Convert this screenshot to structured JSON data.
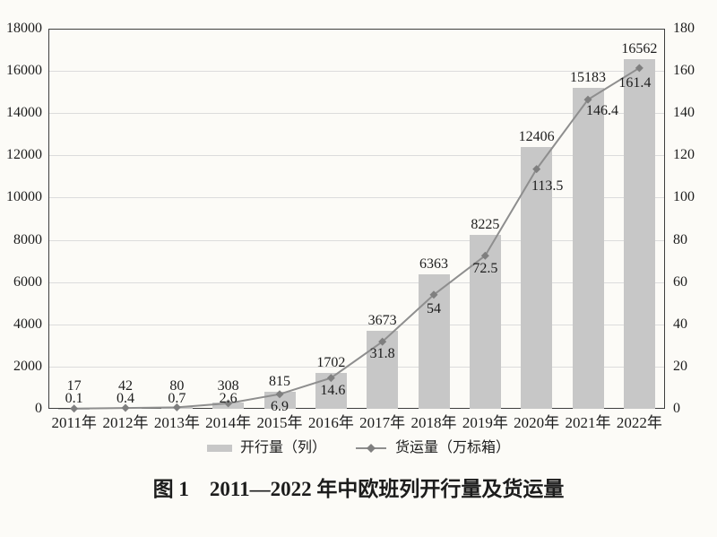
{
  "figure": {
    "caption": "图 1　2011—2022 年中欧班列开行量及货运量"
  },
  "legend": {
    "bar_label": "开行量（列）",
    "line_label": "货运量（万标箱）"
  },
  "chart_data": {
    "type": "bar+line",
    "title": "",
    "categories": [
      "2011年",
      "2012年",
      "2013年",
      "2014年",
      "2015年",
      "2016年",
      "2017年",
      "2018年",
      "2019年",
      "2020年",
      "2021年",
      "2022年"
    ],
    "series": [
      {
        "name": "开行量（列）",
        "chart": "bar",
        "axis": "left",
        "values": [
          17,
          42,
          80,
          308,
          815,
          1702,
          3673,
          6363,
          8225,
          12406,
          15183,
          16562
        ],
        "labels": [
          "17",
          "42",
          "80",
          "308",
          "815",
          "1702",
          "3673",
          "6363",
          "8225",
          "12406",
          "15183",
          "16562"
        ],
        "color": "#c7c7c7"
      },
      {
        "name": "货运量（万标箱）",
        "chart": "line",
        "axis": "right",
        "values": [
          0.1,
          0.4,
          0.7,
          2.6,
          6.9,
          14.6,
          31.8,
          54,
          72.5,
          113.5,
          146.4,
          161.4
        ],
        "labels": [
          "0.1",
          "0.4",
          "0.7",
          "2.6",
          "6.9",
          "14.6",
          "31.8",
          "54",
          "72.5",
          "113.5",
          "146.4",
          "161.4"
        ],
        "color": "#8e8e8e",
        "marker": "diamond",
        "marker_color": "#7f7f7f"
      }
    ],
    "left_axis": {
      "min": 0,
      "max": 18000,
      "step": 2000,
      "ticks": [
        "18000",
        "16000",
        "14000",
        "12000",
        "10000",
        "8000",
        "6000",
        "4000",
        "2000",
        "0"
      ]
    },
    "right_axis": {
      "min": 0,
      "max": 180,
      "step": 20,
      "ticks": [
        "180",
        "160",
        "140",
        "120",
        "100",
        "80",
        "60",
        "40",
        "20",
        "0"
      ]
    },
    "grid": true,
    "legend_position": "bottom",
    "colors": {
      "background": "#fcfbf7",
      "bar": "#c7c7c7",
      "line": "#8e8e8e",
      "marker": "#7f7f7f",
      "gridline": "#dcdcdc",
      "axis_border": "#3e3e3e",
      "text": "#1c1c1c"
    }
  }
}
